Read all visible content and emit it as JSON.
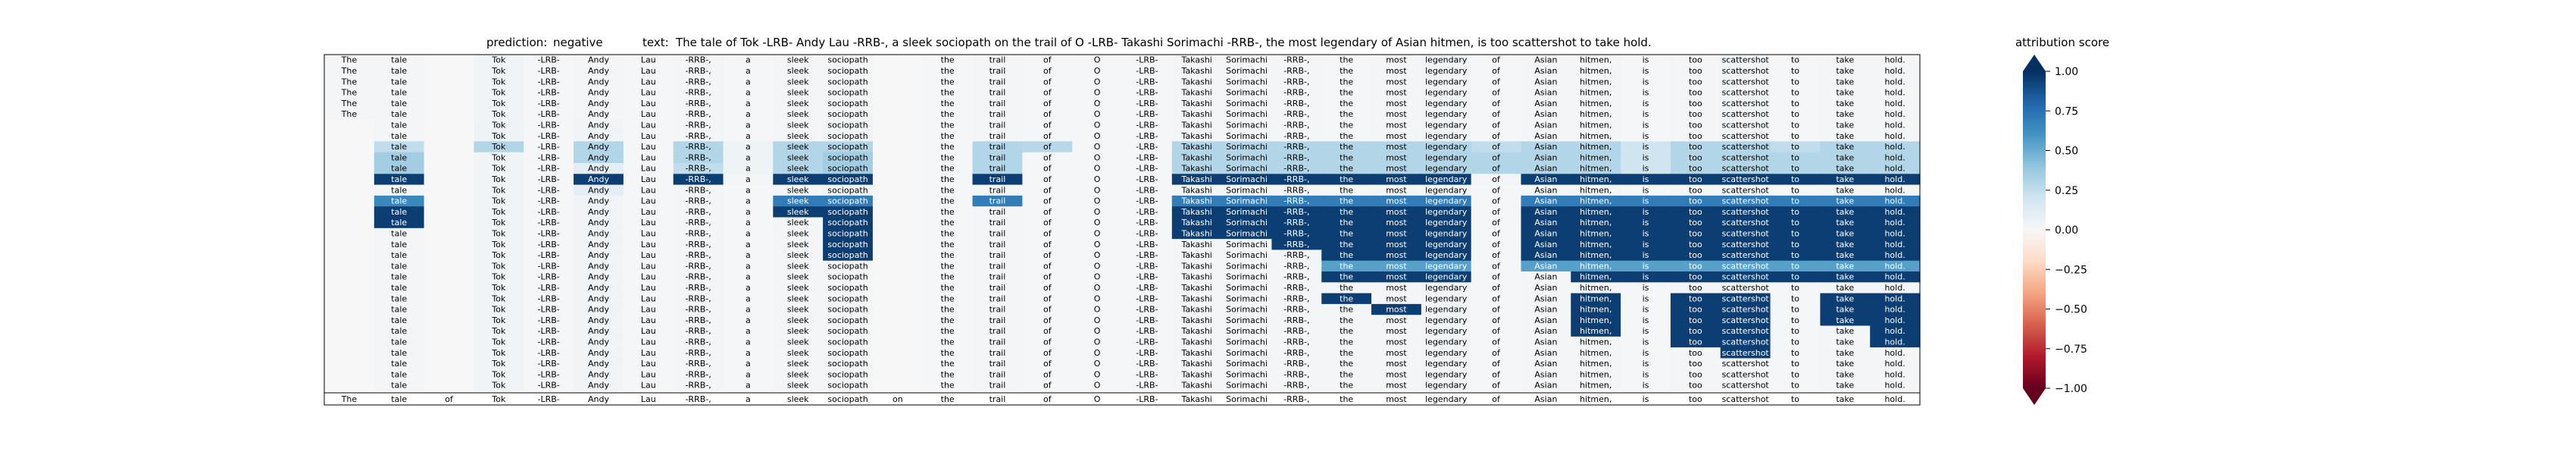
{
  "chart_data": {
    "type": "heatmap",
    "header": {
      "prediction_label": "prediction:",
      "prediction_value": "negative",
      "text_label": "text:",
      "text_value": "The tale of Tok -LRB- Andy Lau -RRB-, a sleek sociopath on the trail of O -LRB- Takashi Sorimachi -RRB-, the most legendary of Asian hitmen, is too scattershot to take hold."
    },
    "tokens": [
      "The",
      "tale",
      "of",
      "Tok",
      "-LRB-",
      "Andy",
      "Lau",
      "-RRB-,",
      "a",
      "sleek",
      "sociopath",
      "on",
      "the",
      "trail",
      "of",
      "O",
      "-LRB-",
      "Takashi",
      "Sorimachi",
      "-RRB-,",
      "the",
      "most",
      "legendary",
      "of",
      "Asian",
      "hitmen,",
      "is",
      "too",
      "scattershot",
      "to",
      "take",
      "hold."
    ],
    "row_spans": [
      {
        "row": 0,
        "start": 0,
        "end": 31
      },
      {
        "row": 1,
        "start": 0,
        "end": 31
      },
      {
        "row": 2,
        "start": 0,
        "end": 31
      },
      {
        "row": 3,
        "start": 0,
        "end": 31
      },
      {
        "row": 4,
        "start": 0,
        "end": 31
      },
      {
        "row": 5,
        "start": 0,
        "end": 31
      },
      {
        "row": 6,
        "start": 1,
        "end": 31
      },
      {
        "row": 7,
        "start": 1,
        "end": 31
      },
      {
        "row": 8,
        "start": 1,
        "end": 31
      },
      {
        "row": 9,
        "start": 1,
        "end": 31
      },
      {
        "row": 10,
        "start": 1,
        "end": 31
      },
      {
        "row": 11,
        "start": 1,
        "end": 31
      },
      {
        "row": 12,
        "start": 1,
        "end": 31
      },
      {
        "row": 13,
        "start": 1,
        "end": 31
      },
      {
        "row": 14,
        "start": 1,
        "end": 31
      },
      {
        "row": 15,
        "start": 1,
        "end": 31
      },
      {
        "row": 16,
        "start": 1,
        "end": 31
      },
      {
        "row": 17,
        "start": 1,
        "end": 31
      },
      {
        "row": 18,
        "start": 1,
        "end": 31
      },
      {
        "row": 19,
        "start": 1,
        "end": 31
      },
      {
        "row": 20,
        "start": 1,
        "end": 31
      },
      {
        "row": 21,
        "start": 1,
        "end": 31
      },
      {
        "row": 22,
        "start": 1,
        "end": 31
      },
      {
        "row": 23,
        "start": 1,
        "end": 31
      },
      {
        "row": 24,
        "start": 1,
        "end": 31
      },
      {
        "row": 25,
        "start": 1,
        "end": 31
      },
      {
        "row": 26,
        "start": 1,
        "end": 31
      },
      {
        "row": 27,
        "start": 1,
        "end": 31
      },
      {
        "row": 28,
        "start": 1,
        "end": 31
      },
      {
        "row": 29,
        "start": 1,
        "end": 31
      },
      {
        "row": 30,
        "start": 1,
        "end": 31
      }
    ],
    "attributions": [
      [
        0.02,
        0.02,
        0.0,
        0.03,
        0.01,
        0.02,
        0.01,
        0.02,
        0.01,
        0.02,
        0.02,
        0.0,
        0.01,
        0.02,
        0.01,
        0.01,
        0.01,
        0.02,
        0.02,
        0.02,
        0.01,
        0.02,
        0.03,
        0.01,
        0.02,
        0.02,
        0.01,
        0.02,
        0.03,
        0.01,
        0.02,
        0.02
      ],
      [
        0.02,
        0.02,
        0.0,
        0.03,
        0.01,
        0.02,
        0.01,
        0.02,
        0.01,
        0.02,
        0.02,
        0.0,
        0.01,
        0.02,
        0.01,
        0.01,
        0.01,
        0.02,
        0.02,
        0.02,
        0.01,
        0.02,
        0.03,
        0.01,
        0.02,
        0.02,
        0.01,
        0.02,
        0.03,
        0.01,
        0.02,
        0.02
      ],
      [
        0.02,
        0.02,
        0.0,
        0.03,
        0.01,
        0.02,
        0.01,
        0.02,
        0.01,
        0.02,
        0.02,
        0.0,
        0.01,
        0.02,
        0.01,
        0.01,
        0.01,
        0.02,
        0.02,
        0.02,
        0.01,
        0.02,
        0.03,
        0.01,
        0.02,
        0.02,
        0.01,
        0.02,
        0.03,
        0.01,
        0.02,
        0.02
      ],
      [
        0.02,
        0.02,
        0.0,
        0.03,
        0.01,
        0.02,
        0.01,
        0.02,
        0.01,
        0.02,
        0.02,
        0.0,
        0.01,
        0.02,
        0.01,
        0.01,
        0.01,
        0.02,
        0.02,
        0.02,
        0.01,
        0.02,
        0.03,
        0.01,
        0.02,
        0.02,
        0.01,
        0.02,
        0.03,
        0.01,
        0.02,
        0.02
      ],
      [
        0.02,
        0.02,
        0.0,
        0.03,
        0.01,
        0.02,
        0.01,
        0.02,
        0.01,
        0.02,
        0.02,
        0.0,
        0.01,
        0.02,
        0.01,
        0.01,
        0.01,
        0.02,
        0.02,
        0.02,
        0.01,
        0.02,
        0.03,
        0.01,
        0.02,
        0.02,
        0.01,
        0.02,
        0.03,
        0.01,
        0.02,
        0.02
      ],
      [
        0.02,
        0.02,
        0.0,
        0.03,
        0.01,
        0.02,
        0.01,
        0.02,
        0.01,
        0.02,
        0.02,
        0.0,
        0.01,
        0.02,
        0.01,
        0.01,
        0.01,
        0.02,
        0.02,
        0.02,
        0.01,
        0.02,
        0.03,
        0.01,
        0.02,
        0.02,
        0.01,
        0.02,
        0.03,
        0.01,
        0.02,
        0.02
      ],
      [
        0,
        0.02,
        0.0,
        0.05,
        0.01,
        0.03,
        0.01,
        0.02,
        0.01,
        0.02,
        0.03,
        0.0,
        0.01,
        0.02,
        0.01,
        0.01,
        0.01,
        0.02,
        0.02,
        0.02,
        0.01,
        0.02,
        0.03,
        0.01,
        0.02,
        0.02,
        0.01,
        0.02,
        0.03,
        0.01,
        0.02,
        0.02
      ],
      [
        0,
        0.02,
        0.0,
        0.05,
        0.01,
        0.03,
        0.01,
        0.02,
        0.01,
        0.02,
        0.03,
        0.0,
        0.01,
        0.02,
        0.01,
        0.01,
        0.01,
        0.02,
        0.02,
        0.02,
        0.01,
        0.02,
        0.03,
        0.01,
        0.02,
        0.02,
        0.01,
        0.02,
        0.03,
        0.01,
        0.02,
        0.02
      ],
      [
        0,
        0.25,
        0.0,
        0.3,
        0.01,
        0.3,
        0.01,
        0.3,
        0.05,
        0.3,
        0.3,
        0.0,
        0.01,
        0.3,
        0.28,
        0.01,
        0.01,
        0.3,
        0.3,
        0.3,
        0.3,
        0.3,
        0.3,
        0.25,
        0.3,
        0.3,
        0.2,
        0.3,
        0.3,
        0.25,
        0.3,
        0.3
      ],
      [
        0,
        0.35,
        0.0,
        0.03,
        0.01,
        0.3,
        0.01,
        0.3,
        0.05,
        0.3,
        0.35,
        0.0,
        0.01,
        0.3,
        0.01,
        0.01,
        0.01,
        0.3,
        0.3,
        0.3,
        0.3,
        0.3,
        0.3,
        0.3,
        0.3,
        0.3,
        0.2,
        0.3,
        0.3,
        0.3,
        0.3,
        0.3
      ],
      [
        0,
        0.35,
        0.0,
        0.03,
        0.01,
        0.1,
        0.01,
        0.25,
        0.05,
        0.3,
        0.35,
        0.0,
        0.01,
        0.3,
        0.01,
        0.01,
        0.01,
        0.3,
        0.3,
        0.3,
        0.3,
        0.3,
        0.3,
        0.3,
        0.3,
        0.3,
        0.2,
        0.3,
        0.3,
        0.3,
        0.3,
        0.3
      ],
      [
        0,
        0.95,
        0.0,
        0.03,
        0.01,
        0.95,
        0.01,
        0.95,
        0.02,
        0.95,
        0.95,
        0.0,
        0.01,
        0.95,
        0.01,
        0.01,
        0.01,
        0.95,
        0.95,
        0.95,
        0.95,
        0.95,
        0.95,
        0.02,
        0.95,
        0.95,
        0.95,
        0.95,
        0.95,
        0.95,
        0.95,
        0.95
      ],
      [
        0,
        0.02,
        0.0,
        0.03,
        0.01,
        0.1,
        0.01,
        0.02,
        0.01,
        0.02,
        0.03,
        0.0,
        0.01,
        0.02,
        0.01,
        0.01,
        0.01,
        0.02,
        0.02,
        0.02,
        0.01,
        0.02,
        0.03,
        0.01,
        0.02,
        0.02,
        0.01,
        0.02,
        0.03,
        0.01,
        0.02,
        0.02
      ],
      [
        0,
        0.65,
        0.0,
        0.03,
        0.01,
        0.03,
        0.01,
        0.02,
        0.01,
        0.7,
        0.7,
        0.0,
        0.01,
        0.7,
        0.01,
        0.01,
        0.01,
        0.7,
        0.7,
        0.7,
        0.7,
        0.7,
        0.7,
        0.01,
        0.7,
        0.7,
        0.7,
        0.7,
        0.7,
        0.7,
        0.7,
        0.7
      ],
      [
        0,
        0.95,
        0.0,
        0.03,
        0.01,
        0.03,
        0.01,
        0.02,
        0.01,
        0.95,
        0.95,
        0.0,
        0.01,
        0.02,
        0.01,
        0.01,
        0.01,
        0.95,
        0.95,
        0.95,
        0.95,
        0.95,
        0.95,
        0.01,
        0.95,
        0.95,
        0.95,
        0.95,
        0.95,
        0.95,
        0.95,
        0.95
      ],
      [
        0,
        0.95,
        0.0,
        0.03,
        0.01,
        0.03,
        0.01,
        0.02,
        0.01,
        0.02,
        0.95,
        0.0,
        0.01,
        0.02,
        0.01,
        0.01,
        0.01,
        0.95,
        0.95,
        0.95,
        0.95,
        0.95,
        0.95,
        0.01,
        0.95,
        0.95,
        0.95,
        0.95,
        0.95,
        0.95,
        0.95,
        0.95
      ],
      [
        0,
        0.02,
        0.0,
        0.03,
        0.01,
        0.03,
        0.01,
        0.02,
        0.01,
        0.02,
        0.95,
        0.0,
        0.01,
        0.02,
        0.01,
        0.01,
        0.01,
        0.95,
        0.95,
        0.95,
        0.95,
        0.95,
        0.95,
        0.01,
        0.95,
        0.95,
        0.95,
        0.95,
        0.95,
        0.95,
        0.95,
        0.95
      ],
      [
        0,
        0.02,
        0.0,
        0.03,
        0.01,
        0.03,
        0.01,
        0.02,
        0.01,
        0.02,
        0.95,
        0.0,
        0.01,
        0.02,
        0.01,
        0.01,
        0.01,
        0.02,
        0.02,
        0.95,
        0.95,
        0.95,
        0.95,
        0.01,
        0.95,
        0.95,
        0.95,
        0.95,
        0.95,
        0.95,
        0.95,
        0.95
      ],
      [
        0,
        0.02,
        0.0,
        0.03,
        0.01,
        0.03,
        0.01,
        0.02,
        0.01,
        0.02,
        0.95,
        0.0,
        0.01,
        0.02,
        0.01,
        0.01,
        0.01,
        0.02,
        0.02,
        0.02,
        0.95,
        0.95,
        0.95,
        0.01,
        0.95,
        0.95,
        0.95,
        0.95,
        0.95,
        0.95,
        0.95,
        0.95
      ],
      [
        0,
        0.02,
        0.0,
        0.03,
        0.01,
        0.03,
        0.01,
        0.02,
        0.01,
        0.02,
        0.02,
        0.0,
        0.01,
        0.02,
        0.01,
        0.01,
        0.01,
        0.02,
        0.02,
        0.02,
        0.55,
        0.55,
        0.55,
        0.01,
        0.55,
        0.55,
        0.55,
        0.55,
        0.55,
        0.55,
        0.55,
        0.55
      ],
      [
        0,
        0.02,
        0.0,
        0.03,
        0.01,
        0.03,
        0.01,
        0.02,
        0.01,
        0.02,
        0.02,
        0.0,
        0.01,
        0.02,
        0.01,
        0.01,
        0.01,
        0.02,
        0.02,
        0.02,
        0.95,
        0.95,
        0.95,
        0.01,
        0.02,
        0.95,
        0.95,
        0.95,
        0.95,
        0.95,
        0.95,
        0.95
      ],
      [
        0,
        0.02,
        0.0,
        0.03,
        0.01,
        0.03,
        0.01,
        0.02,
        0.01,
        0.02,
        0.02,
        0.0,
        0.01,
        0.02,
        0.01,
        0.01,
        0.01,
        0.02,
        0.02,
        0.02,
        0.02,
        0.02,
        0.03,
        0.01,
        0.02,
        0.02,
        0.01,
        0.02,
        0.03,
        0.01,
        0.02,
        0.02
      ],
      [
        0,
        0.02,
        0.0,
        0.03,
        0.01,
        0.03,
        0.01,
        0.02,
        0.01,
        0.02,
        0.02,
        0.0,
        0.01,
        0.02,
        0.01,
        0.01,
        0.01,
        0.02,
        0.02,
        0.02,
        0.95,
        0.02,
        0.03,
        0.01,
        0.02,
        0.95,
        0.01,
        0.95,
        0.95,
        0.01,
        0.95,
        0.95
      ],
      [
        0,
        0.02,
        0.0,
        0.03,
        0.01,
        0.03,
        0.01,
        0.02,
        0.01,
        0.02,
        0.02,
        0.0,
        0.01,
        0.02,
        0.01,
        0.01,
        0.01,
        0.02,
        0.02,
        0.02,
        0.02,
        0.95,
        0.03,
        0.01,
        0.02,
        0.95,
        0.01,
        0.95,
        0.95,
        0.01,
        0.95,
        0.95
      ],
      [
        0,
        0.02,
        0.0,
        0.03,
        0.01,
        0.03,
        0.01,
        0.02,
        0.01,
        0.02,
        0.02,
        0.0,
        0.01,
        0.02,
        0.01,
        0.01,
        0.01,
        0.02,
        0.02,
        0.02,
        0.02,
        0.02,
        0.03,
        0.01,
        0.02,
        0.95,
        0.01,
        0.95,
        0.95,
        0.01,
        0.95,
        0.95
      ],
      [
        0,
        0.02,
        0.0,
        0.03,
        0.01,
        0.03,
        0.01,
        0.02,
        0.01,
        0.02,
        0.02,
        0.0,
        0.01,
        0.02,
        0.01,
        0.01,
        0.01,
        0.02,
        0.02,
        0.02,
        0.02,
        0.02,
        0.03,
        0.01,
        0.02,
        0.95,
        0.01,
        0.95,
        0.95,
        0.01,
        0.02,
        0.95
      ],
      [
        0,
        0.02,
        0.0,
        0.03,
        0.01,
        0.03,
        0.01,
        0.02,
        0.01,
        0.02,
        0.02,
        0.0,
        0.01,
        0.02,
        0.01,
        0.01,
        0.01,
        0.02,
        0.02,
        0.02,
        0.02,
        0.02,
        0.03,
        0.01,
        0.02,
        0.02,
        0.01,
        0.95,
        0.95,
        0.01,
        0.02,
        0.95
      ],
      [
        0,
        0.02,
        0.0,
        0.03,
        0.01,
        0.03,
        0.01,
        0.02,
        0.01,
        0.02,
        0.02,
        0.0,
        0.01,
        0.02,
        0.01,
        0.01,
        0.01,
        0.02,
        0.02,
        0.02,
        0.02,
        0.02,
        0.03,
        0.01,
        0.02,
        0.02,
        0.01,
        0.02,
        0.95,
        0.01,
        0.02,
        0.02
      ],
      [
        0,
        0.02,
        0.0,
        0.03,
        0.01,
        0.03,
        0.01,
        0.02,
        0.01,
        0.02,
        0.02,
        0.0,
        0.01,
        0.02,
        0.01,
        0.01,
        0.01,
        0.02,
        0.02,
        0.02,
        0.02,
        0.02,
        0.03,
        0.01,
        0.02,
        0.02,
        0.01,
        0.02,
        0.02,
        0.01,
        0.02,
        0.02
      ],
      [
        0,
        0.02,
        0.0,
        0.03,
        0.01,
        0.03,
        0.01,
        0.02,
        0.01,
        0.02,
        0.02,
        0.0,
        0.01,
        0.02,
        0.01,
        0.01,
        0.01,
        0.02,
        0.02,
        0.02,
        0.02,
        0.02,
        0.03,
        0.01,
        0.02,
        0.02,
        0.01,
        0.02,
        0.02,
        0.01,
        0.02,
        0.02
      ],
      [
        0,
        0.02,
        0.0,
        0.03,
        0.01,
        0.03,
        0.01,
        0.02,
        0.01,
        0.02,
        0.02,
        0.0,
        0.01,
        0.02,
        0.01,
        0.01,
        0.01,
        0.02,
        0.02,
        0.02,
        0.02,
        0.02,
        0.03,
        0.01,
        0.02,
        0.02,
        0.01,
        0.02,
        0.02,
        0.01,
        0.02,
        0.02
      ]
    ],
    "colorbar": {
      "label": "attribution score",
      "vmin": -1.0,
      "vmax": 1.0,
      "ticks": [
        "1.00",
        "0.75",
        "0.50",
        "0.25",
        "0.00",
        "−0.25",
        "−0.50",
        "−0.75",
        "−1.00"
      ],
      "tick_values": [
        1.0,
        0.75,
        0.5,
        0.25,
        0.0,
        -0.25,
        -0.5,
        -0.75,
        -1.0
      ],
      "colormap": "RdBu",
      "colors": [
        "#67001f",
        "#b2182b",
        "#d6604d",
        "#f4a582",
        "#fddbc7",
        "#f7f7f7",
        "#d1e5f0",
        "#92c5de",
        "#4393c3",
        "#2166ac",
        "#053061"
      ]
    },
    "grid": false
  }
}
